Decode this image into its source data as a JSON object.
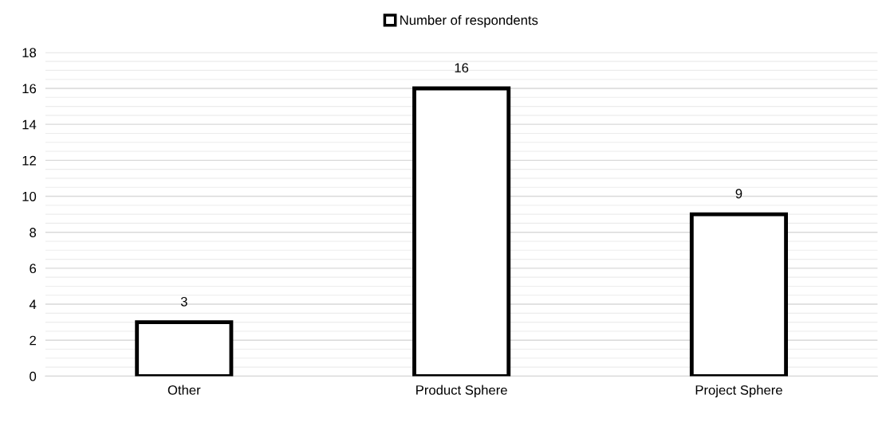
{
  "chart_data": {
    "type": "bar",
    "categories": [
      "Other",
      "Product Sphere",
      "Project Sphere"
    ],
    "series": [
      {
        "name": "Number of respondents",
        "color": "#ffffff",
        "values": [
          3,
          16,
          9
        ]
      }
    ],
    "ylim": [
      0,
      18
    ],
    "yticks": [
      0,
      2,
      4,
      6,
      8,
      10,
      12,
      14,
      16,
      18
    ],
    "grid": "y",
    "legend": "top",
    "data_labels": true
  }
}
